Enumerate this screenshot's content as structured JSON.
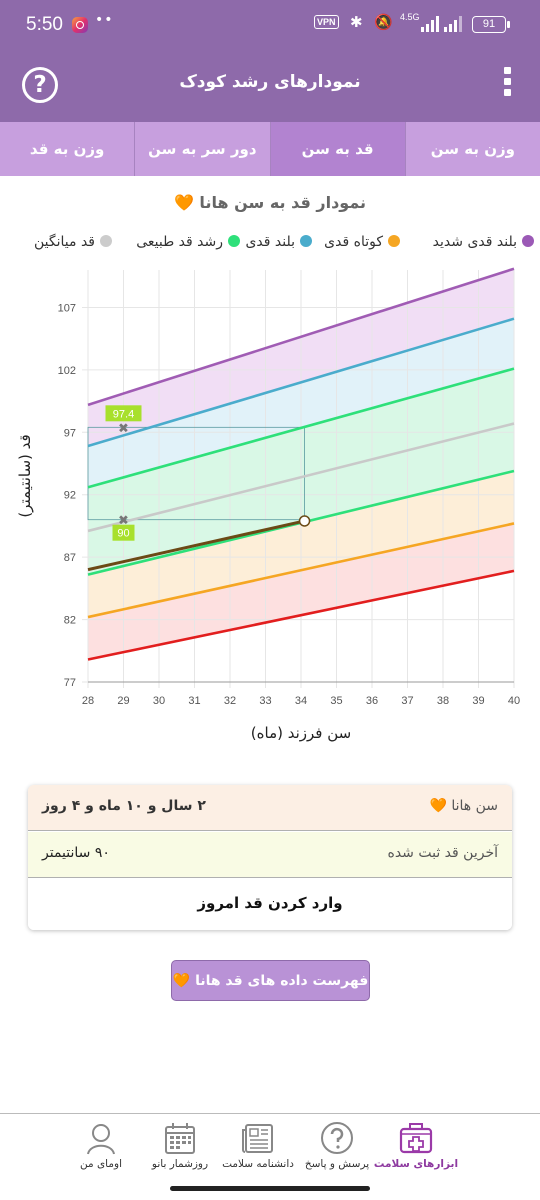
{
  "status_bar": {
    "time": "5:50",
    "vpn": "VPN",
    "network": "4.5G",
    "battery": "91"
  },
  "app_bar": {
    "title": "نمودارهای رشد کودک",
    "help_icon": "question-circle-icon",
    "menu_icon": "vertical-dots-icon"
  },
  "tabs": [
    {
      "label": "وزن به سن",
      "active": false
    },
    {
      "label": "قد به سن",
      "active": true
    },
    {
      "label": "دور سر به سن",
      "active": false
    },
    {
      "label": "وزن به قد",
      "active": false
    }
  ],
  "chart_title": "نمودار قد به سن هانا 🧡",
  "legend": [
    {
      "label": "بلند قدی شدید",
      "color": "#9b59b6"
    },
    {
      "label": "کوتاه قدی",
      "color": "#f5a623"
    },
    {
      "label": "بلند قدی",
      "color": "#4aaccc"
    },
    {
      "label": "رشد قد طبیعی",
      "color": "#2ee07a"
    },
    {
      "label": "قد میانگین",
      "color": "#cccccc"
    }
  ],
  "chart_data": {
    "type": "line",
    "xlabel": "سن فرزند (ماه)",
    "ylabel": "قد (سانتیمتر)",
    "xlim": [
      28,
      40
    ],
    "ylim": [
      77,
      110
    ],
    "x_ticks": [
      28,
      29,
      30,
      31,
      32,
      33,
      34,
      35,
      36,
      37,
      38,
      39,
      40
    ],
    "y_ticks": [
      77,
      82,
      87,
      92,
      97,
      102,
      107
    ],
    "grid": true,
    "series": [
      {
        "color": "#a05cb4",
        "start": [
          28,
          99.2
        ],
        "end": [
          40,
          110.1
        ]
      },
      {
        "color": "#4aaccc",
        "start": [
          28,
          95.9
        ],
        "end": [
          40,
          106.1
        ]
      },
      {
        "color": "#2ee07a",
        "start": [
          28,
          92.6
        ],
        "end": [
          40,
          102.1
        ]
      },
      {
        "color": "#c9c9c9",
        "start": [
          28,
          89.1
        ],
        "end": [
          40,
          97.7
        ]
      },
      {
        "color": "#2ee07a",
        "start": [
          28,
          85.6
        ],
        "end": [
          40,
          93.9
        ]
      },
      {
        "color": "#f5a623",
        "start": [
          28,
          82.2
        ],
        "end": [
          40,
          89.7
        ]
      },
      {
        "color": "#e21e1e",
        "start": [
          28,
          78.8
        ],
        "end": [
          40,
          85.9
        ]
      },
      {
        "name": "هانا",
        "color": "#6b4a16",
        "start": [
          28,
          86.0
        ],
        "end": [
          34.1,
          89.9
        ]
      }
    ],
    "markers": [
      {
        "x": 29,
        "y": 97.4,
        "label": "97.4"
      },
      {
        "x": 29,
        "y": 90,
        "label": "90"
      }
    ],
    "current_point": {
      "x": 34.1,
      "y": 89.9
    }
  },
  "info_card": {
    "age_label": "سن هانا 🧡",
    "age_value": "۲ سال و ۱۰ ماه و ۴ روز",
    "height_label": "آخرین قد ثبت شده",
    "height_value": "۹۰ سانتیمتر",
    "enter_button": "وارد کردن قد امروز"
  },
  "list_button": "فهرست داده های قد هانا 🧡",
  "bottom_nav": [
    {
      "label": "ابزارهای سلامت",
      "icon": "health-kit-icon",
      "active": true
    },
    {
      "label": "پرسش و پاسخ",
      "icon": "question-icon",
      "active": false
    },
    {
      "label": "دانشنامه سلامت",
      "icon": "newspaper-icon",
      "active": false
    },
    {
      "label": "روزشمار بانو",
      "icon": "calendar-icon",
      "active": false
    },
    {
      "label": "اومای من",
      "icon": "user-icon",
      "active": false
    }
  ]
}
